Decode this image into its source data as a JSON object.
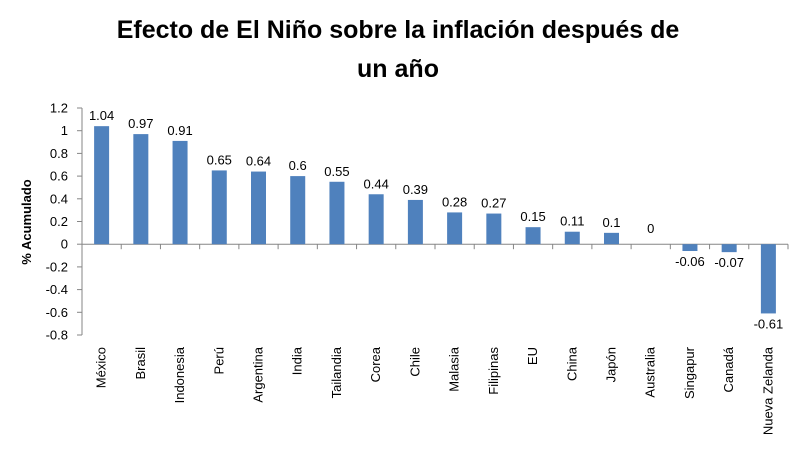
{
  "chart_data": {
    "type": "bar",
    "title_lines": [
      "Efecto de El Niño sobre la inflación después de",
      "un año"
    ],
    "xlabel": "",
    "ylabel": "% Acumulado",
    "ylim": [
      -0.8,
      1.2
    ],
    "yticks": [
      1.2,
      1,
      0.8,
      0.6,
      0.4,
      0.2,
      0,
      -0.2,
      -0.4,
      -0.6,
      -0.8
    ],
    "ytick_labels": [
      "1.2",
      "1",
      "0.8",
      "0.6",
      "0.4",
      "0.2",
      "0",
      "-0.2",
      "-0.4",
      "-0.6",
      "-0.8"
    ],
    "categories": [
      "México",
      "Brasil",
      "Indonesia",
      "Perú",
      "Argentina",
      "India",
      "Tailandia",
      "Corea",
      "Chile",
      "Malasia",
      "Filipinas",
      "EU",
      "China",
      "Japón",
      "Australia",
      "Singapur",
      "Canadá",
      "Nueva Zelanda"
    ],
    "values": [
      1.04,
      0.97,
      0.91,
      0.65,
      0.64,
      0.6,
      0.55,
      0.44,
      0.39,
      0.28,
      0.27,
      0.15,
      0.11,
      0.1,
      0,
      -0.06,
      -0.07,
      -0.61
    ],
    "value_labels": [
      "1.04",
      "0.97",
      "0.91",
      "0.65",
      "0.64",
      "0.6",
      "0.55",
      "0.44",
      "0.39",
      "0.28",
      "0.27",
      "0.15",
      "0.11",
      "0.1",
      "0",
      "-0.06",
      "-0.07",
      "-0.61"
    ],
    "grid": false,
    "legend": "none",
    "bar_color": "#4F81BD",
    "axis_color": "#868686"
  }
}
